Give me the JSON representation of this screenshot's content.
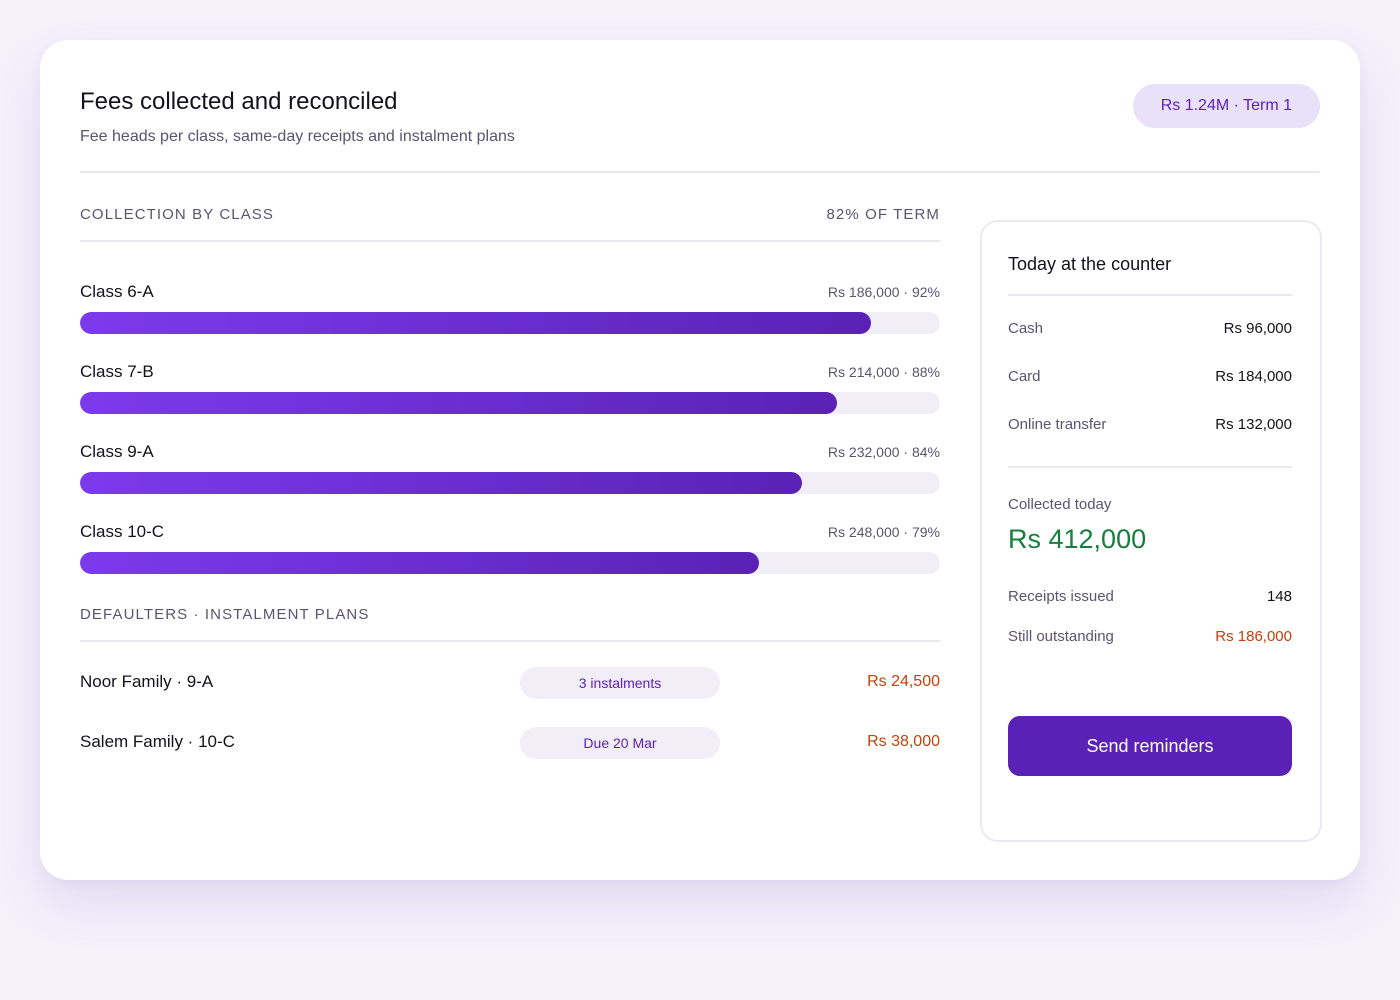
{
  "header": {
    "title": "Fees collected and reconciled",
    "subtitle": "Fee heads per class, same-day receipts and instalment plans",
    "term_pill": "Rs 1.24M · Term 1"
  },
  "collection": {
    "section_title": "COLLECTION BY CLASS",
    "section_aside": "82% OF TERM",
    "classes": [
      {
        "name": "Class 6-A",
        "meta": "Rs 186,000 · 92%",
        "percent": 92
      },
      {
        "name": "Class 7-B",
        "meta": "Rs 214,000 · 88%",
        "percent": 88
      },
      {
        "name": "Class 9-A",
        "meta": "Rs 232,000 · 84%",
        "percent": 84
      },
      {
        "name": "Class 10-C",
        "meta": "Rs 248,000 · 79%",
        "percent": 79
      }
    ]
  },
  "defaulters": {
    "section_title": "DEFAULTERS · INSTALMENT PLANS",
    "items": [
      {
        "name": "Noor Family · 9-A",
        "tag": "3 instalments",
        "amount": "Rs 24,500"
      },
      {
        "name": "Salem Family · 10-C",
        "tag": "Due 20 Mar",
        "amount": "Rs 38,000"
      }
    ]
  },
  "counter": {
    "title": "Today at the counter",
    "payments": [
      {
        "label": "Cash",
        "value": "Rs 96,000"
      },
      {
        "label": "Card",
        "value": "Rs 184,000"
      },
      {
        "label": "Online transfer",
        "value": "Rs 132,000"
      }
    ],
    "collected_today_label": "Collected today",
    "collected_today_value": "Rs 412,000",
    "receipts_label": "Receipts issued",
    "receipts_value": "148",
    "outstanding_label": "Still outstanding",
    "outstanding_value": "Rs 186,000",
    "send_button": "Send reminders"
  },
  "colors": {
    "accent": "#5b21b6",
    "accent_light": "#7c3aed",
    "positive": "#15803d",
    "negative": "#c2410c"
  }
}
